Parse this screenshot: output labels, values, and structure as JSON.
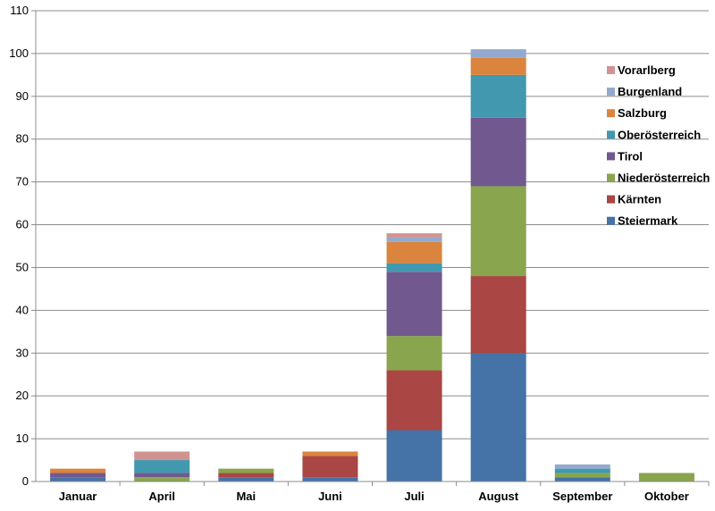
{
  "chart_data": {
    "type": "bar",
    "stacked": true,
    "title": "",
    "xlabel": "",
    "ylabel": "",
    "ylim": [
      0,
      110
    ],
    "yticks": [
      0,
      10,
      20,
      30,
      40,
      50,
      60,
      70,
      80,
      90,
      100,
      110
    ],
    "grid": true,
    "legend_position": "right",
    "categories": [
      "Januar",
      "April",
      "Mai",
      "Juni",
      "Juli",
      "August",
      "September",
      "Oktober"
    ],
    "series": [
      {
        "name": "Steiermark",
        "color": "#4572A7",
        "values": [
          1,
          0,
          1,
          1,
          12,
          30,
          1,
          0
        ]
      },
      {
        "name": "Kärnten",
        "color": "#AA4643",
        "values": [
          0,
          0,
          1,
          5,
          14,
          18,
          0,
          0
        ]
      },
      {
        "name": "Niederösterreich",
        "color": "#89A54E",
        "values": [
          0,
          1,
          1,
          0,
          8,
          21,
          1,
          2
        ]
      },
      {
        "name": "Tirol",
        "color": "#71588F",
        "values": [
          1,
          1,
          0,
          0,
          15,
          16,
          0,
          0
        ]
      },
      {
        "name": "Oberösterreich",
        "color": "#4198AF",
        "values": [
          0,
          3,
          0,
          0,
          2,
          10,
          1,
          0
        ]
      },
      {
        "name": "Salzburg",
        "color": "#DB843D",
        "values": [
          1,
          0,
          0,
          1,
          5,
          4,
          0,
          0
        ]
      },
      {
        "name": "Burgenland",
        "color": "#93A9CF",
        "values": [
          0,
          0,
          0,
          0,
          1,
          2,
          1,
          0
        ]
      },
      {
        "name": "Vorarlberg",
        "color": "#D19392",
        "values": [
          0,
          2,
          0,
          0,
          1,
          0,
          0,
          0
        ]
      }
    ]
  }
}
